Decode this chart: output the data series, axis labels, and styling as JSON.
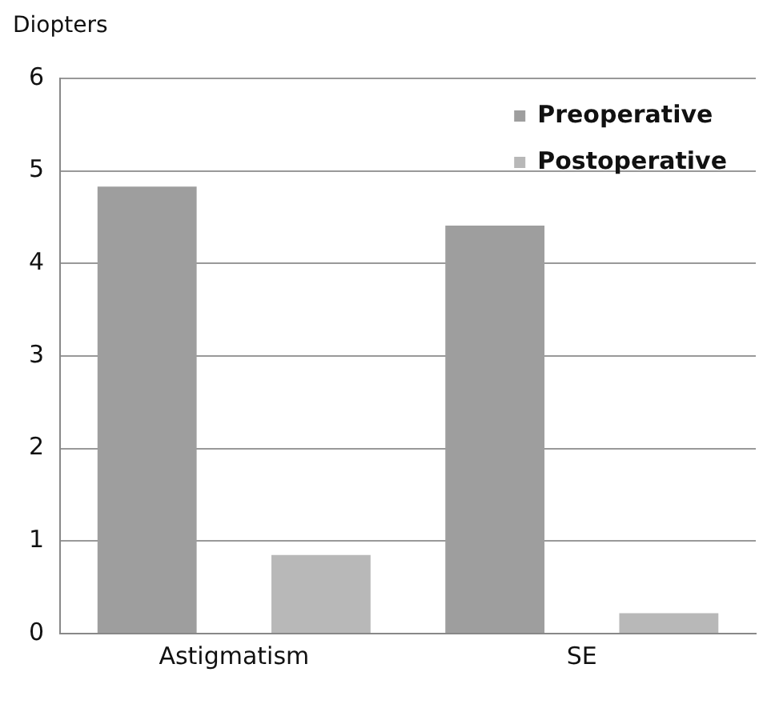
{
  "chart_data": {
    "type": "bar",
    "ylabel": "Diopters",
    "categories": [
      "Astigmatism",
      "SE"
    ],
    "series": [
      {
        "name": "Preoperative",
        "color": "#9e9e9e",
        "values": [
          4.83,
          4.41
        ]
      },
      {
        "name": "Postoperative",
        "color": "#b8b8b8",
        "values": [
          0.85,
          0.22
        ]
      }
    ],
    "ylim": [
      0,
      6
    ],
    "yticks": [
      0,
      1,
      2,
      3,
      4,
      5,
      6
    ],
    "grid": "y",
    "legend": "top right"
  }
}
